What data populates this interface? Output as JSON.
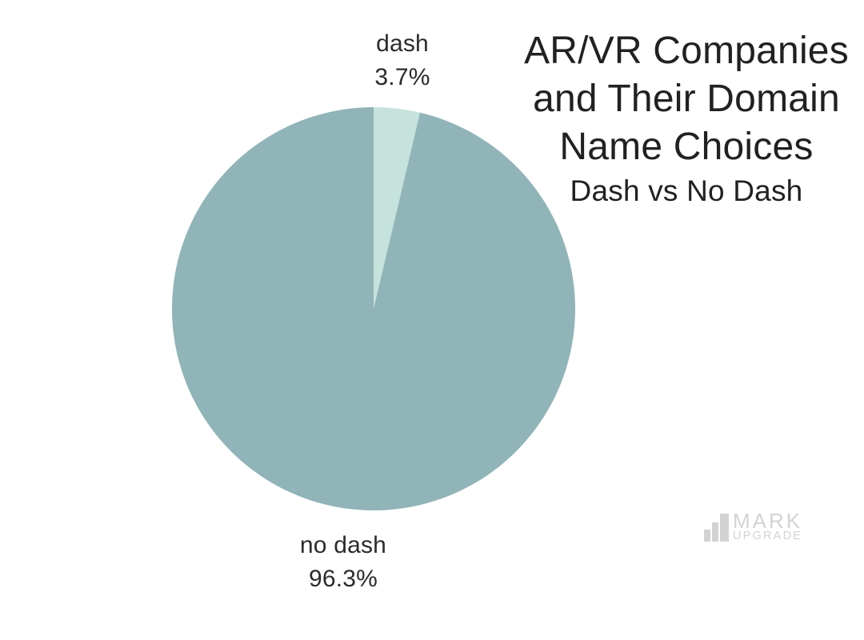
{
  "colors": {
    "background": "#ffffff",
    "text": "#2b2b2b",
    "title_text": "#212121",
    "slice_dash": "#c6e2dd",
    "slice_no_dash": "#90b4b7",
    "logo_gray": "#d3d3d3"
  },
  "chart_data": {
    "type": "pie",
    "title": "AR/VR Companies and Their Domain Name Choices",
    "title_lines": [
      "AR/VR Companies",
      "and Their Domain",
      "Name Choices"
    ],
    "subtitle": "Dash vs No Dash",
    "categories": [
      "dash",
      "no dash"
    ],
    "values": [
      3.7,
      96.3
    ],
    "slices": [
      {
        "label": "dash",
        "value": 3.7,
        "pct_label": "3.7%",
        "color": "#c6e2dd"
      },
      {
        "label": "no dash",
        "value": 96.3,
        "pct_label": "96.3%",
        "color": "#90b4b7"
      }
    ],
    "start_angle_deg": -90,
    "direction": "clockwise",
    "legend_position": "none",
    "labels_position": "outside",
    "xlabel": "",
    "ylabel": ""
  },
  "logo": {
    "line1": "MARK",
    "line2": "UPGRADE",
    "icon": "bar-chart-icon",
    "color": "#d3d3d3"
  }
}
